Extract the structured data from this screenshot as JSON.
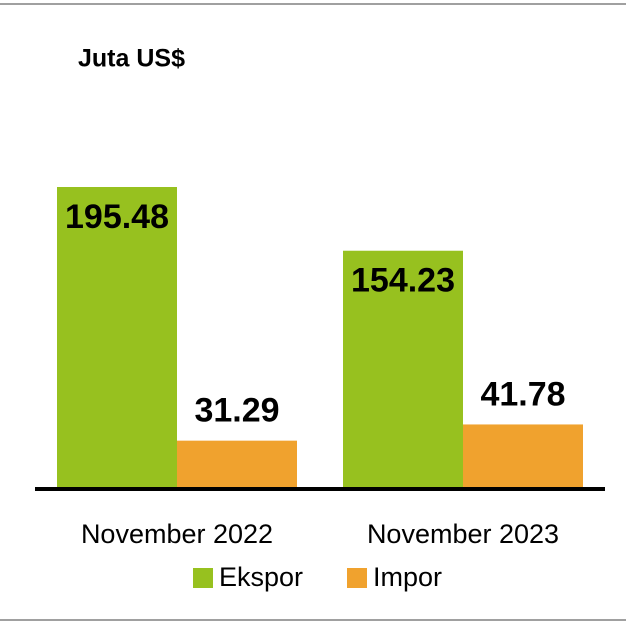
{
  "chart_data": {
    "type": "bar",
    "title": "Juta US$",
    "categories": [
      "November 2022",
      "November 2023"
    ],
    "series": [
      {
        "name": "Ekspor",
        "color": "#97c11f",
        "values": [
          195.48,
          154.23
        ]
      },
      {
        "name": "Impor",
        "color": "#f0a22e",
        "values": [
          31.29,
          41.78
        ]
      }
    ]
  }
}
